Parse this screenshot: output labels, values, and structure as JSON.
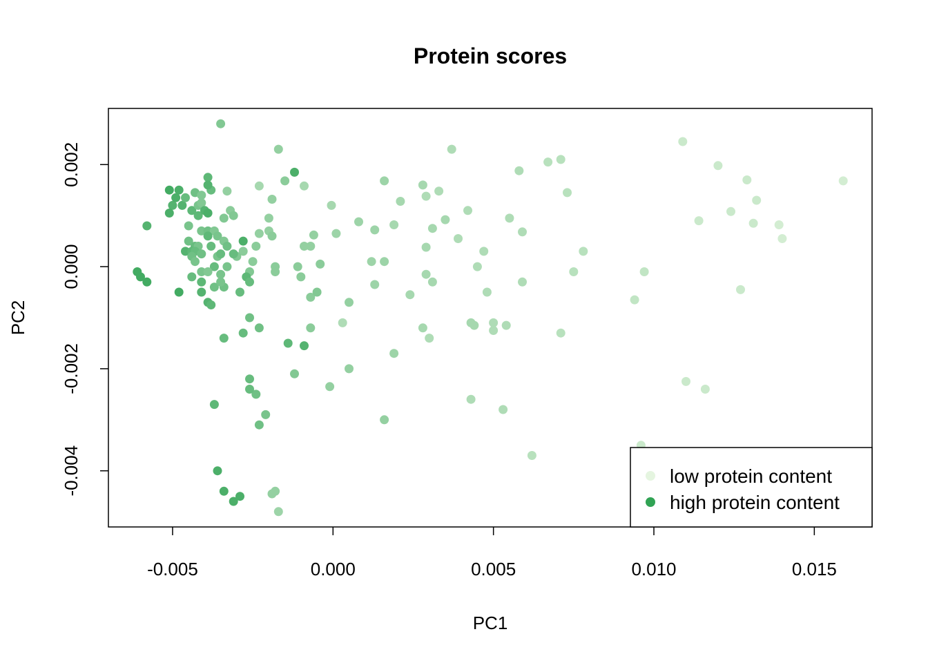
{
  "chart_data": {
    "type": "scatter",
    "title": "Protein scores",
    "xlabel": "PC1",
    "ylabel": "PC2",
    "xlim": [
      -0.007,
      0.0168
    ],
    "ylim": [
      -0.0051,
      0.0031
    ],
    "x_ticks": [
      -0.005,
      0.0,
      0.005,
      0.01,
      0.015
    ],
    "x_tick_labels": [
      "-0.005",
      "0.000",
      "0.005",
      "0.010",
      "0.015"
    ],
    "y_ticks": [
      -0.004,
      -0.002,
      0.0,
      0.002
    ],
    "y_tick_labels": [
      "-0.004",
      "-0.002",
      "0.000",
      "0.002"
    ],
    "grid": false,
    "legend": {
      "position": "bottom-right",
      "entries": [
        {
          "label": "low protein content",
          "color": "#e5f5e0"
        },
        {
          "label": "high protein content",
          "color": "#31a354"
        }
      ]
    },
    "color_scale": {
      "low": "#e5f5e0",
      "high": "#31a354"
    },
    "points": [
      [
        -0.0035,
        0.0028,
        0.55
      ],
      [
        -0.0017,
        0.0023,
        0.45
      ],
      [
        -0.0012,
        0.00185,
        0.85
      ],
      [
        -0.0015,
        0.00168,
        0.5
      ],
      [
        -0.0023,
        0.00158,
        0.35
      ],
      [
        -0.0009,
        0.00158,
        0.35
      ],
      [
        -5e-05,
        0.0012,
        0.35
      ],
      [
        0.0008,
        0.00088,
        0.4
      ],
      [
        0.0016,
        0.00168,
        0.4
      ],
      [
        0.0021,
        0.00128,
        0.35
      ],
      [
        0.0028,
        0.0016,
        0.35
      ],
      [
        0.0033,
        0.00148,
        0.3
      ],
      [
        0.0037,
        0.0023,
        0.3
      ],
      [
        0.0058,
        0.00188,
        0.3
      ],
      [
        0.0067,
        0.00205,
        0.25
      ],
      [
        0.0071,
        0.0021,
        0.25
      ],
      [
        0.0073,
        0.00145,
        0.25
      ],
      [
        0.0109,
        0.00245,
        0.15
      ],
      [
        0.012,
        0.00198,
        0.15
      ],
      [
        0.0129,
        0.0017,
        0.15
      ],
      [
        0.0159,
        0.00168,
        0.1
      ],
      [
        0.0132,
        0.0013,
        0.15
      ],
      [
        0.0124,
        0.00108,
        0.15
      ],
      [
        0.0114,
        0.0009,
        0.15
      ],
      [
        0.0131,
        0.00085,
        0.15
      ],
      [
        0.0139,
        0.00082,
        0.1
      ],
      [
        0.014,
        0.00055,
        0.1
      ],
      [
        -0.0033,
        0.00148,
        0.45
      ],
      [
        -0.0019,
        0.00132,
        0.45
      ],
      [
        -0.0032,
        0.0011,
        0.5
      ],
      [
        -0.0031,
        0.001,
        0.55
      ],
      [
        -0.0034,
        0.00095,
        0.55
      ],
      [
        -0.002,
        0.00095,
        0.45
      ],
      [
        -0.002,
        0.0007,
        0.45
      ],
      [
        -0.0023,
        0.00065,
        0.45
      ],
      [
        -0.0006,
        0.00062,
        0.45
      ],
      [
        0.0001,
        0.00065,
        0.4
      ],
      [
        0.0013,
        0.00072,
        0.4
      ],
      [
        0.0019,
        0.00082,
        0.35
      ],
      [
        0.0031,
        0.00075,
        0.35
      ],
      [
        0.0035,
        0.00092,
        0.35
      ],
      [
        0.0042,
        0.0011,
        0.3
      ],
      [
        0.0055,
        0.00095,
        0.3
      ],
      [
        0.0059,
        0.00068,
        0.3
      ],
      [
        0.0029,
        0.00138,
        0.3
      ],
      [
        0.0039,
        0.00055,
        0.3
      ],
      [
        0.0047,
        0.0003,
        0.3
      ],
      [
        0.0029,
        0.00038,
        0.35
      ],
      [
        -0.0019,
        0.0006,
        0.5
      ],
      [
        -0.0024,
        0.0004,
        0.5
      ],
      [
        -0.0028,
        0.0003,
        0.5
      ],
      [
        -0.0009,
        0.0004,
        0.45
      ],
      [
        -0.0007,
        0.0004,
        0.45
      ],
      [
        -0.0004,
        5e-05,
        0.5
      ],
      [
        -0.0011,
        0.0,
        0.5
      ],
      [
        -0.0018,
        0.0,
        0.5
      ],
      [
        -0.0025,
        0.0001,
        0.5
      ],
      [
        -0.003,
        0.0002,
        0.55
      ],
      [
        -0.0036,
        0.0002,
        0.6
      ],
      [
        -0.0035,
        -0.00015,
        0.6
      ],
      [
        -0.0026,
        -0.0001,
        0.55
      ],
      [
        -0.0018,
        -0.0001,
        0.5
      ],
      [
        -0.001,
        -0.0002,
        0.5
      ],
      [
        0.0012,
        0.0001,
        0.4
      ],
      [
        0.0016,
        0.0001,
        0.4
      ],
      [
        0.0045,
        0.0,
        0.3
      ],
      [
        0.0078,
        0.0003,
        0.25
      ],
      [
        0.0075,
        -0.0001,
        0.25
      ],
      [
        0.0097,
        -0.0001,
        0.2
      ],
      [
        0.0059,
        -0.0003,
        0.3
      ],
      [
        0.0031,
        -0.0003,
        0.35
      ],
      [
        0.0029,
        -0.00015,
        0.35
      ],
      [
        0.0013,
        -0.00035,
        0.4
      ],
      [
        0.0024,
        -0.00055,
        0.35
      ],
      [
        0.0048,
        -0.0005,
        0.3
      ],
      [
        0.0094,
        -0.00065,
        0.2
      ],
      [
        0.0127,
        -0.00045,
        0.15
      ],
      [
        -0.0007,
        -0.0006,
        0.5
      ],
      [
        -0.0005,
        -0.0005,
        0.55
      ],
      [
        -0.0007,
        -0.0012,
        0.5
      ],
      [
        0.0005,
        -0.0007,
        0.45
      ],
      [
        0.0003,
        -0.0011,
        0.3
      ],
      [
        0.0028,
        -0.0012,
        0.35
      ],
      [
        0.0043,
        -0.0011,
        0.35
      ],
      [
        0.0044,
        -0.00115,
        0.35
      ],
      [
        0.005,
        -0.0011,
        0.3
      ],
      [
        0.0054,
        -0.00115,
        0.3
      ],
      [
        0.003,
        -0.0014,
        0.3
      ],
      [
        0.005,
        -0.00125,
        0.3
      ],
      [
        0.0071,
        -0.0013,
        0.25
      ],
      [
        0.0019,
        -0.0017,
        0.4
      ],
      [
        0.0005,
        -0.002,
        0.45
      ],
      [
        -0.0001,
        -0.00235,
        0.45
      ],
      [
        -0.0012,
        -0.0021,
        0.55
      ],
      [
        0.0043,
        -0.0026,
        0.3
      ],
      [
        0.0053,
        -0.0028,
        0.3
      ],
      [
        0.0016,
        -0.003,
        0.45
      ],
      [
        0.0062,
        -0.0037,
        0.25
      ],
      [
        0.011,
        -0.00225,
        0.15
      ],
      [
        0.0116,
        -0.0024,
        0.15
      ],
      [
        0.0096,
        -0.0035,
        0.15
      ],
      [
        -0.0018,
        -0.0044,
        0.45
      ],
      [
        -0.0019,
        -0.00445,
        0.45
      ],
      [
        -0.0017,
        -0.0048,
        0.4
      ],
      [
        -0.0021,
        -0.0029,
        0.6
      ],
      [
        -0.0023,
        -0.0031,
        0.65
      ],
      [
        -0.0024,
        -0.0025,
        0.65
      ],
      [
        -0.0026,
        -0.0022,
        0.7
      ],
      [
        -0.0026,
        -0.0024,
        0.7
      ],
      [
        -0.0026,
        -0.001,
        0.65
      ],
      [
        -0.0023,
        -0.0012,
        0.65
      ],
      [
        -0.0028,
        -0.0013,
        0.7
      ],
      [
        -0.0034,
        -0.0014,
        0.7
      ],
      [
        -0.0014,
        -0.0015,
        0.75
      ],
      [
        -0.0009,
        -0.00155,
        0.8
      ],
      [
        -0.0037,
        -0.0027,
        0.75
      ],
      [
        -0.0036,
        -0.004,
        0.85
      ],
      [
        -0.0034,
        -0.0044,
        0.85
      ],
      [
        -0.0031,
        -0.0046,
        0.85
      ],
      [
        -0.0029,
        -0.0045,
        0.85
      ],
      [
        -0.0051,
        0.0015,
        0.9
      ],
      [
        -0.0048,
        0.0015,
        0.85
      ],
      [
        -0.005,
        0.0012,
        0.8
      ],
      [
        -0.0049,
        0.00135,
        0.85
      ],
      [
        -0.0047,
        0.0012,
        0.8
      ],
      [
        -0.0051,
        0.00105,
        0.85
      ],
      [
        -0.0046,
        0.00135,
        0.7
      ],
      [
        -0.0044,
        0.0011,
        0.75
      ],
      [
        -0.0043,
        0.00145,
        0.65
      ],
      [
        -0.0042,
        0.0012,
        0.6
      ],
      [
        -0.0041,
        0.00125,
        0.55
      ],
      [
        -0.0041,
        0.0014,
        0.55
      ],
      [
        -0.0039,
        0.00175,
        0.75
      ],
      [
        -0.0038,
        0.0015,
        0.7
      ],
      [
        -0.0039,
        0.0016,
        0.8
      ],
      [
        -0.0042,
        0.001,
        0.75
      ],
      [
        -0.004,
        0.0011,
        0.8
      ],
      [
        -0.0039,
        0.00105,
        0.85
      ],
      [
        -0.0045,
        0.0008,
        0.6
      ],
      [
        -0.0041,
        0.0007,
        0.6
      ],
      [
        -0.0039,
        0.0007,
        0.65
      ],
      [
        -0.0037,
        0.0007,
        0.55
      ],
      [
        -0.0045,
        0.0005,
        0.65
      ],
      [
        -0.0043,
        0.0004,
        0.7
      ],
      [
        -0.0042,
        0.0004,
        0.6
      ],
      [
        -0.0039,
        0.0006,
        0.75
      ],
      [
        -0.0038,
        0.0004,
        0.7
      ],
      [
        -0.0036,
        0.0006,
        0.6
      ],
      [
        -0.0034,
        0.0005,
        0.55
      ],
      [
        -0.0033,
        0.0004,
        0.65
      ],
      [
        -0.0031,
        0.00025,
        0.7
      ],
      [
        -0.0028,
        0.0005,
        0.85
      ],
      [
        -0.0046,
        0.0003,
        0.8
      ],
      [
        -0.0044,
        0.0003,
        0.75
      ],
      [
        -0.0043,
        0.0003,
        0.7
      ],
      [
        -0.0044,
        0.0002,
        0.65
      ],
      [
        -0.0041,
        0.00025,
        0.65
      ],
      [
        -0.0043,
        0.0001,
        0.6
      ],
      [
        -0.0035,
        0.00025,
        0.7
      ],
      [
        -0.0037,
        0.0,
        0.7
      ],
      [
        -0.0033,
        0.0,
        0.6
      ],
      [
        -0.0041,
        -0.0001,
        0.6
      ],
      [
        -0.0039,
        -0.0001,
        0.55
      ],
      [
        -0.0044,
        -0.0002,
        0.7
      ],
      [
        -0.0041,
        -0.0003,
        0.75
      ],
      [
        -0.0037,
        -0.0004,
        0.65
      ],
      [
        -0.0034,
        -0.0004,
        0.65
      ],
      [
        -0.0029,
        -0.0005,
        0.7
      ],
      [
        -0.0027,
        -0.0002,
        0.75
      ],
      [
        -0.0026,
        -0.0003,
        0.7
      ],
      [
        -0.0035,
        -0.0003,
        0.6
      ],
      [
        -0.0041,
        -0.0005,
        0.8
      ],
      [
        -0.0039,
        -0.0007,
        0.8
      ],
      [
        -0.0038,
        -0.00075,
        0.75
      ],
      [
        -0.0048,
        -0.0005,
        0.9
      ],
      [
        -0.0058,
        0.0008,
        0.8
      ],
      [
        -0.0061,
        -0.0001,
        0.9
      ],
      [
        -0.006,
        -0.0002,
        0.9
      ],
      [
        -0.0058,
        -0.0003,
        0.9
      ]
    ]
  }
}
